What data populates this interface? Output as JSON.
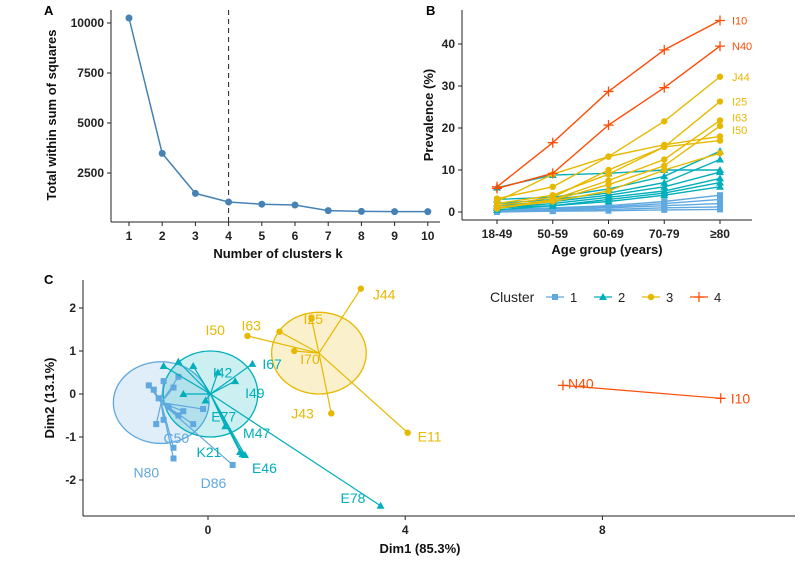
{
  "colors": {
    "c1": "#5fa8e0",
    "c2": "#00AFBB",
    "c3": "#E7B800",
    "c4": "#FC4E07",
    "elbow": "#4682b4"
  },
  "chart_data": [
    {
      "panel": "A",
      "type": "line",
      "x": [
        1,
        2,
        3,
        4,
        5,
        6,
        7,
        8,
        9,
        10
      ],
      "values": [
        10250,
        3480,
        1480,
        1050,
        940,
        900,
        620,
        580,
        570,
        570
      ],
      "xlabel": "Number of clusters k",
      "ylabel": "Total within sum of squares",
      "yticks": [
        2500,
        5000,
        7500,
        10000
      ],
      "ylim": [
        0,
        10500
      ],
      "vline": 4,
      "grid": false
    },
    {
      "panel": "B",
      "type": "line",
      "categories": [
        "18-49",
        "50-59",
        "60-69",
        "70-79",
        "≥80"
      ],
      "xlabel": "Age group (years)",
      "ylabel": "Prevalence (%)",
      "yticks": [
        0,
        10,
        20,
        30,
        40
      ],
      "ylim": [
        -1,
        47
      ],
      "grid": false,
      "series": [
        {
          "label": "I10",
          "cluster": 4,
          "values": [
            6,
            16.5,
            28.7,
            38.6,
            45.6
          ]
        },
        {
          "label": "N40",
          "cluster": 4,
          "values": [
            5.6,
            9.2,
            20.7,
            29.6,
            39.5
          ]
        },
        {
          "label": "J44",
          "cluster": 3,
          "values": [
            3.2,
            6,
            13.2,
            21.6,
            32.2
          ]
        },
        {
          "label": "I25",
          "cluster": 3,
          "values": [
            2,
            4,
            9,
            15.5,
            26.3
          ]
        },
        {
          "label": "I63",
          "cluster": 3,
          "values": [
            1,
            3,
            7.5,
            12.5,
            21.8
          ]
        },
        {
          "label": "I50",
          "cluster": 3,
          "values": [
            0.8,
            2.8,
            6.5,
            11,
            20.5
          ]
        },
        {
          "label": "",
          "cluster": 3,
          "values": [
            1.5,
            3.5,
            10,
            15.5,
            17
          ]
        },
        {
          "label": "",
          "cluster": 3,
          "values": [
            2.5,
            9,
            13.2,
            16,
            18
          ]
        },
        {
          "label": "",
          "cluster": 3,
          "values": [
            1,
            2.5,
            5,
            10,
            14
          ]
        },
        {
          "label": "",
          "cluster": 2,
          "values": [
            5.8,
            8.8,
            9.2,
            10,
            10
          ]
        },
        {
          "label": "",
          "cluster": 2,
          "values": [
            3,
            3.5,
            5.5,
            8.5,
            14.5
          ]
        },
        {
          "label": "",
          "cluster": 2,
          "values": [
            2,
            3,
            4.5,
            7,
            12.5
          ]
        },
        {
          "label": "",
          "cluster": 2,
          "values": [
            1.5,
            2.5,
            4,
            6,
            9.5
          ]
        },
        {
          "label": "",
          "cluster": 2,
          "values": [
            1,
            2,
            3.5,
            5,
            8
          ]
        },
        {
          "label": "",
          "cluster": 2,
          "values": [
            1,
            1.5,
            3,
            4.5,
            7
          ]
        },
        {
          "label": "",
          "cluster": 2,
          "values": [
            0.5,
            1.5,
            2.5,
            4,
            6
          ]
        },
        {
          "label": "",
          "cluster": 1,
          "values": [
            0.5,
            1,
            1.5,
            2.5,
            4
          ]
        },
        {
          "label": "",
          "cluster": 1,
          "values": [
            0.3,
            0.8,
            1.2,
            2,
            3
          ]
        },
        {
          "label": "",
          "cluster": 1,
          "values": [
            0.2,
            0.5,
            1,
            1.5,
            2
          ]
        },
        {
          "label": "",
          "cluster": 1,
          "values": [
            0.1,
            0.3,
            0.6,
            1,
            1.2
          ]
        },
        {
          "label": "",
          "cluster": 1,
          "values": [
            0,
            0.2,
            0.3,
            0.5,
            0.6
          ]
        }
      ]
    },
    {
      "panel": "C",
      "type": "scatter",
      "xlabel": "Dim1 (85.3%)",
      "ylabel": "Dim2 (13.1%)",
      "xticks": [
        0,
        4,
        8
      ],
      "yticks": [
        -2,
        -1,
        0,
        1,
        2
      ],
      "xlim": [
        -2.5,
        11
      ],
      "ylim": [
        -2.8,
        2.6
      ],
      "grid": false,
      "legend": {
        "title": "Cluster",
        "entries": [
          "1",
          "2",
          "3",
          "4"
        ],
        "placement": "top-right"
      },
      "clusters": [
        {
          "id": 1,
          "center": [
            -0.95,
            -0.2
          ],
          "ellipse": [
            0.97,
            0.95
          ],
          "points": [
            {
              "label": "N80",
              "x": -0.7,
              "y": -1.5
            },
            {
              "label": "D86",
              "x": 0.5,
              "y": -1.65
            },
            {
              "label": "C50",
              "x": -0.7,
              "y": -1.25
            },
            {
              "label": "",
              "x": -1.2,
              "y": 0.2
            },
            {
              "label": "",
              "x": -1.1,
              "y": 0.1
            },
            {
              "label": "",
              "x": -0.9,
              "y": 0.3
            },
            {
              "label": "",
              "x": -0.7,
              "y": 0.15
            },
            {
              "label": "",
              "x": -1.0,
              "y": -0.1
            },
            {
              "label": "",
              "x": -0.8,
              "y": -0.3
            },
            {
              "label": "",
              "x": -0.6,
              "y": -0.5
            },
            {
              "label": "",
              "x": -0.9,
              "y": -0.6
            },
            {
              "label": "",
              "x": -0.5,
              "y": -0.4
            },
            {
              "label": "",
              "x": -0.1,
              "y": -0.35
            },
            {
              "label": "",
              "x": -0.3,
              "y": -0.7
            },
            {
              "label": "",
              "x": -1.05,
              "y": -0.7
            },
            {
              "label": "",
              "x": -0.6,
              "y": 0.4
            }
          ]
        },
        {
          "id": 2,
          "center": [
            0.05,
            0.0
          ],
          "ellipse": [
            0.96,
            1.0
          ],
          "points": [
            {
              "label": "I67",
              "x": 0.9,
              "y": 0.7
            },
            {
              "label": "I42",
              "x": 0.2,
              "y": 0.5
            },
            {
              "label": "I49",
              "x": 0.55,
              "y": 0.3
            },
            {
              "label": "E77",
              "x": 0.35,
              "y": -0.75
            },
            {
              "label": "M47",
              "x": 0.65,
              "y": -1.35
            },
            {
              "label": "K21",
              "x": 0.7,
              "y": -1.4
            },
            {
              "label": "E46",
              "x": 0.75,
              "y": -1.42
            },
            {
              "label": "E78",
              "x": 3.5,
              "y": -2.6
            },
            {
              "label": "",
              "x": -0.6,
              "y": 0.75
            },
            {
              "label": "",
              "x": -0.9,
              "y": 0.65
            },
            {
              "label": "",
              "x": -0.3,
              "y": 0.65
            },
            {
              "label": "",
              "x": -0.5,
              "y": 0.0
            },
            {
              "label": "",
              "x": -0.05,
              "y": -0.15
            }
          ]
        },
        {
          "id": 3,
          "center": [
            2.25,
            0.95
          ],
          "ellipse": [
            0.96,
            0.95
          ],
          "points": [
            {
              "label": "J44",
              "x": 3.1,
              "y": 2.45
            },
            {
              "label": "I25",
              "x": 2.1,
              "y": 1.75
            },
            {
              "label": "I63",
              "x": 1.45,
              "y": 1.45
            },
            {
              "label": "I50",
              "x": 0.8,
              "y": 1.35
            },
            {
              "label": "I70",
              "x": 1.75,
              "y": 1.0
            },
            {
              "label": "J43",
              "x": 2.5,
              "y": -0.45
            },
            {
              "label": "E11",
              "x": 4.05,
              "y": -0.9
            }
          ]
        },
        {
          "id": 4,
          "center": [
            8.8,
            0.05
          ],
          "ellipse": null,
          "points": [
            {
              "label": "N40",
              "x": 7.2,
              "y": 0.2
            },
            {
              "label": "I10",
              "x": 10.4,
              "y": -0.1
            }
          ]
        }
      ]
    }
  ],
  "panel_labels": [
    "A",
    "B",
    "C"
  ]
}
